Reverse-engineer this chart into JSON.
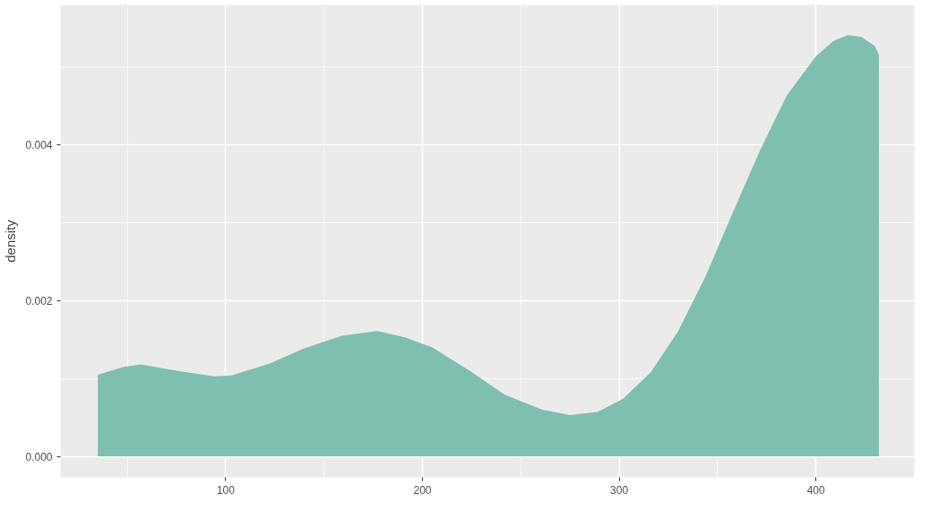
{
  "chart_data": {
    "type": "area",
    "ylabel": "density",
    "x": [
      35,
      48,
      57,
      75,
      94,
      103,
      122,
      140,
      159,
      177,
      191,
      205,
      224,
      242,
      261,
      275,
      289,
      302,
      316,
      330,
      344,
      357,
      371,
      385,
      400,
      409,
      416,
      423,
      430,
      432
    ],
    "series": [
      {
        "color": "#7fbfb0",
        "values": [
          0.00105,
          0.00115,
          0.00118,
          0.0011,
          0.00103,
          0.00104,
          0.00119,
          0.00139,
          0.00155,
          0.00161,
          0.00153,
          0.0014,
          0.0011,
          0.00079,
          0.0006,
          0.00053,
          0.00057,
          0.00074,
          0.00108,
          0.00161,
          0.00232,
          0.00309,
          0.0039,
          0.00463,
          0.00514,
          0.00534,
          0.00541,
          0.00539,
          0.00527,
          0.00516
        ]
      }
    ],
    "xlim": [
      16,
      450
    ],
    "ylim": [
      -0.00027,
      0.0058
    ],
    "xticks": [
      100,
      200,
      300,
      400
    ],
    "yticks": [
      {
        "value": 0,
        "label": "0.000"
      },
      {
        "value": 0.002,
        "label": "0.002"
      },
      {
        "value": 0.004,
        "label": "0.004"
      }
    ],
    "grid": true
  }
}
